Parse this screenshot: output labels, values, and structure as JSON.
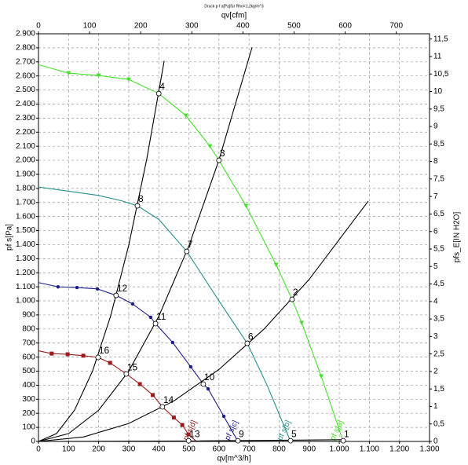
{
  "chart_data": {
    "type": "line",
    "title": "Druck p f a[Pa]für Rho=1,2kg/m^3",
    "xlabel": "qv[m^3/h]",
    "x2label": "qv[cfm]",
    "ylabel": "pf s[Pa]",
    "y2label": "pfs_E[IN H2O]",
    "grid": true,
    "xlim": [
      0,
      1300
    ],
    "xticks": [
      0,
      100,
      200,
      300,
      400,
      500,
      600,
      700,
      800,
      900,
      {
        "value": 1000,
        "label": "1.000"
      },
      {
        "value": 1100,
        "label": "1.100"
      },
      {
        "value": 1200,
        "label": "1.200"
      },
      {
        "value": 1300,
        "label": "1.300"
      }
    ],
    "x2lim": [
      0,
      765
    ],
    "x2ticks": [
      0,
      100,
      200,
      300,
      400,
      500,
      600,
      700
    ],
    "ylim": [
      0,
      2900
    ],
    "yticks": [
      0,
      100,
      200,
      300,
      400,
      500,
      600,
      700,
      800,
      900,
      {
        "value": 1000,
        "label": "1.000"
      },
      {
        "value": 1100,
        "label": "1.100"
      },
      {
        "value": 1200,
        "label": "1.200"
      },
      {
        "value": 1300,
        "label": "1.300"
      },
      {
        "value": 1400,
        "label": "1.400"
      },
      {
        "value": 1500,
        "label": "1.500"
      },
      {
        "value": 1600,
        "label": "1.600"
      },
      {
        "value": 1700,
        "label": "1.700"
      },
      {
        "value": 1800,
        "label": "1.800"
      },
      {
        "value": 1900,
        "label": "1.900"
      },
      {
        "value": 2000,
        "label": "2.000"
      },
      {
        "value": 2100,
        "label": "2.100"
      },
      {
        "value": 2200,
        "label": "2.200"
      },
      {
        "value": 2300,
        "label": "2.300"
      },
      {
        "value": 2400,
        "label": "2.400"
      },
      {
        "value": 2500,
        "label": "2.500"
      },
      {
        "value": 2600,
        "label": "2.600"
      },
      {
        "value": 2700,
        "label": "2.700"
      },
      {
        "value": 2800,
        "label": "2.800"
      },
      {
        "value": 2900,
        "label": "2.900"
      }
    ],
    "y2lim": [
      0,
      11.65
    ],
    "y2ticks": [
      0,
      {
        "value": 0.5,
        "label": "0,5"
      },
      1,
      {
        "value": 1.5,
        "label": "1,5"
      },
      2,
      {
        "value": 2.5,
        "label": "2,5"
      },
      3,
      {
        "value": 3.5,
        "label": "3,5"
      },
      4,
      {
        "value": 4.5,
        "label": "4,5"
      },
      5,
      {
        "value": 5.5,
        "label": "5,5"
      },
      6,
      {
        "value": 6.5,
        "label": "6,5"
      },
      7,
      {
        "value": 7.5,
        "label": "7,5"
      },
      8,
      {
        "value": 8.5,
        "label": "8,5"
      },
      9,
      {
        "value": 9.5,
        "label": "9,5"
      },
      10,
      {
        "value": 10.5,
        "label": "10,5"
      },
      11,
      {
        "value": 11.5,
        "label": "11,5"
      }
    ],
    "series": [
      {
        "name": "pf s[a]",
        "color": "#44e02a",
        "marker": "triangle",
        "x": [
          0,
          100,
          200,
          300,
          400,
          490,
          570,
          600,
          690,
          790,
          843,
          875,
          940,
          1013
        ],
        "values": [
          2680,
          2620,
          2603,
          2575,
          2475,
          2318,
          2100,
          2000,
          1676,
          1257,
          1011,
          844,
          464,
          0
        ]
      },
      {
        "name": "pf s[b]",
        "color": "#2a8f8f",
        "marker": "none",
        "x": [
          0,
          100,
          200,
          280,
          329,
          400,
          493,
          600,
          694,
          760,
          838
        ],
        "values": [
          1810,
          1780,
          1750,
          1710,
          1676,
          1580,
          1352,
          1000,
          698,
          400,
          0
        ]
      },
      {
        "name": "pf s[c]",
        "color": "#1c1c8c",
        "marker": "circle",
        "x": [
          0,
          65,
          128,
          196,
          258,
          313,
          373,
          389,
          446,
          506,
          548,
          564,
          616,
          663
        ],
        "values": [
          1130,
          1100,
          1095,
          1085,
          1039,
          978,
          883,
          838,
          704,
          531,
          408,
          374,
          179,
          0
        ]
      },
      {
        "name": "pf s[d]",
        "color": "#9a1c1c",
        "marker": "square",
        "x": [
          0,
          44,
          97,
          149,
          198,
          238,
          292,
          337,
          380,
          412,
          450,
          478,
          499,
          525
        ],
        "values": [
          645,
          625,
          620,
          610,
          598,
          559,
          480,
          408,
          330,
          246,
          170,
          117,
          50,
          0
        ]
      },
      {
        "color": "#000000",
        "marker": "none",
        "x": [
          0,
          60,
          120,
          180,
          240,
          300,
          360,
          418
        ],
        "values": [
          0,
          55.8,
          223,
          502,
          893,
          1395,
          2009,
          2708
        ]
      },
      {
        "color": "#000000",
        "marker": "none",
        "x": [
          0,
          100,
          200,
          300,
          400,
          500,
          600,
          710
        ],
        "values": [
          0,
          55.6,
          222,
          500,
          890,
          1390,
          2002,
          2803
        ]
      },
      {
        "color": "#000000",
        "marker": "none",
        "x": [
          0,
          150,
          300,
          450,
          600,
          750,
          900,
          1096
        ],
        "values": [
          0,
          32,
          128,
          288,
          512,
          800,
          1153,
          1709
        ]
      },
      {
        "color": "#000000",
        "marker": "none",
        "x": [
          0,
          500,
          1013
        ],
        "values": [
          0,
          3,
          12
        ]
      }
    ],
    "points": [
      {
        "label": "1",
        "x": 1013,
        "y": 5
      },
      {
        "label": "2",
        "x": 843,
        "y": 1011
      },
      {
        "label": "3",
        "x": 600,
        "y": 2000
      },
      {
        "label": "4",
        "x": 400,
        "y": 2475
      },
      {
        "label": "5",
        "x": 838,
        "y": 5
      },
      {
        "label": "6",
        "x": 694,
        "y": 698
      },
      {
        "label": "7",
        "x": 493,
        "y": 1352
      },
      {
        "label": "8",
        "x": 329,
        "y": 1676
      },
      {
        "label": "9",
        "x": 663,
        "y": 5
      },
      {
        "label": "10",
        "x": 548,
        "y": 408
      },
      {
        "label": "11",
        "x": 389,
        "y": 838
      },
      {
        "label": "12",
        "x": 258,
        "y": 1039
      },
      {
        "label": "13",
        "x": 499,
        "y": 5
      },
      {
        "label": "14",
        "x": 412,
        "y": 246
      },
      {
        "label": "15",
        "x": 292,
        "y": 480
      },
      {
        "label": "16",
        "x": 198,
        "y": 598
      }
    ]
  }
}
